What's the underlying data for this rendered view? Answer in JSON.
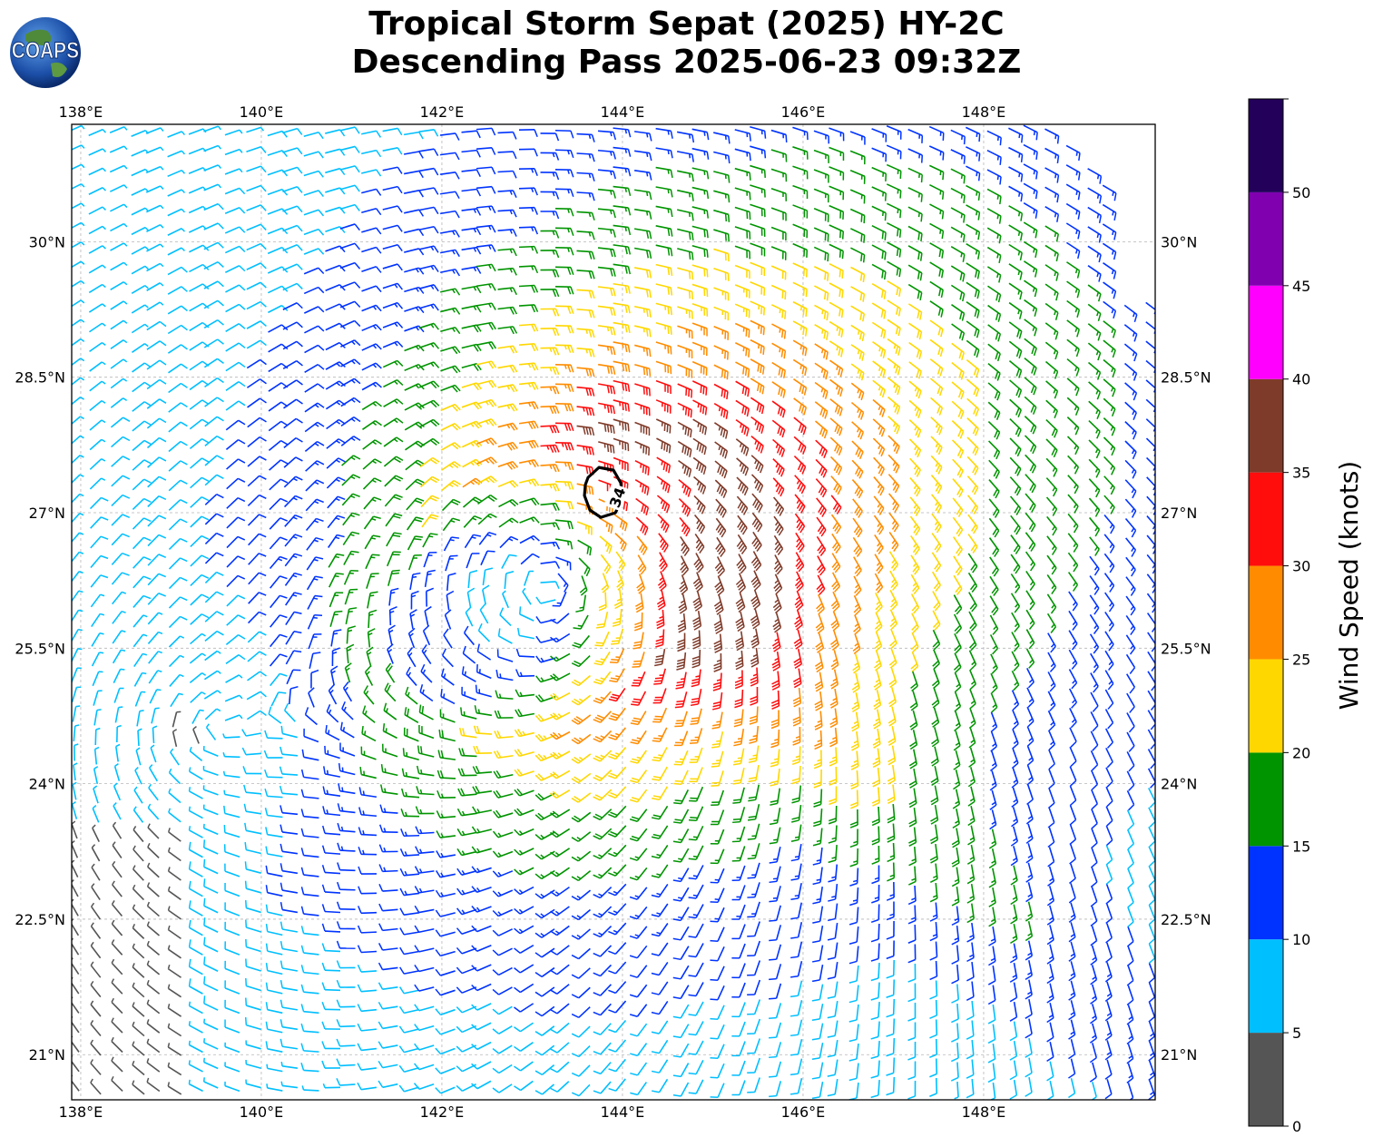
{
  "header": {
    "title_line1": "Tropical Storm Sepat (2025) HY-2C",
    "title_line2": "Descending Pass 2025-06-23 09:32Z",
    "logo_text": "COAPS"
  },
  "map": {
    "lon_labels": [
      "138°E",
      "140°E",
      "142°E",
      "144°E",
      "146°E",
      "148°E"
    ],
    "lon_values": [
      138,
      140,
      142,
      144,
      146,
      148
    ],
    "lat_labels": [
      "30°N",
      "28.5°N",
      "27°N",
      "25.5°N",
      "24°N",
      "22.5°N",
      "21°N"
    ],
    "lat_values": [
      30,
      28.5,
      27,
      25.5,
      24,
      22.5,
      21
    ],
    "lon_range": [
      137.9,
      149.9
    ],
    "lat_range": [
      20.5,
      31.3
    ],
    "storm_center": {
      "lon": 143.2,
      "lat": 26.2
    },
    "secondary_low": {
      "lon": 139.2,
      "lat": 24.6
    },
    "contour": {
      "label": "34",
      "center_lon": 143.8,
      "center_lat": 27.25
    },
    "barb_type": "wind barbs",
    "grid": true
  },
  "colorbar": {
    "label": "Wind Speed (knots)",
    "ticks": [
      "0",
      "5",
      "10",
      "15",
      "20",
      "25",
      "30",
      "35",
      "40",
      "45",
      "50"
    ],
    "bins": [
      {
        "min": 0,
        "max": 5,
        "color": "#555555"
      },
      {
        "min": 5,
        "max": 10,
        "color": "#00bfff"
      },
      {
        "min": 10,
        "max": 15,
        "color": "#0033ff"
      },
      {
        "min": 15,
        "max": 20,
        "color": "#009400"
      },
      {
        "min": 20,
        "max": 25,
        "color": "#ffd700"
      },
      {
        "min": 25,
        "max": 30,
        "color": "#ff8c00"
      },
      {
        "min": 30,
        "max": 35,
        "color": "#ff0d0d"
      },
      {
        "min": 35,
        "max": 40,
        "color": "#7f3b2a"
      },
      {
        "min": 40,
        "max": 45,
        "color": "#ff00ff"
      },
      {
        "min": 45,
        "max": 50,
        "color": "#8000b0"
      },
      {
        "min": 50,
        "max": 55,
        "color": "#23005a"
      }
    ],
    "max_value": 55
  }
}
